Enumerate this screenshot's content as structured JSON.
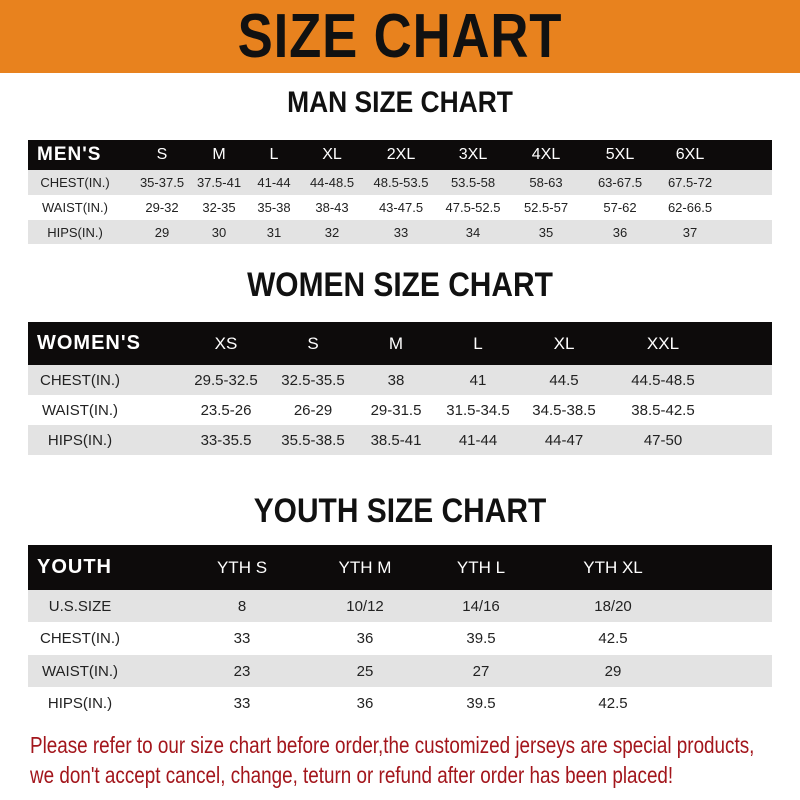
{
  "banner": {
    "title": "SIZE CHART",
    "color": "#E8821E"
  },
  "men": {
    "title": "MAN SIZE CHART",
    "header": [
      "MEN'S",
      "S",
      "M",
      "L",
      "XL",
      "2XL",
      "3XL",
      "4XL",
      "5XL",
      "6XL"
    ],
    "rows": [
      [
        "CHEST(IN.)",
        "35-37.5",
        "37.5-41",
        "41-44",
        "44-48.5",
        "48.5-53.5",
        "53.5-58",
        "58-63",
        "63-67.5",
        "67.5-72"
      ],
      [
        "WAIST(IN.)",
        "29-32",
        "32-35",
        "35-38",
        "38-43",
        "43-47.5",
        "47.5-52.5",
        "52.5-57",
        "57-62",
        "62-66.5"
      ],
      [
        "HIPS(IN.)",
        "29",
        "30",
        "31",
        "32",
        "33",
        "34",
        "35",
        "36",
        "37"
      ]
    ]
  },
  "women": {
    "title": "WOMEN SIZE CHART",
    "header": [
      "WOMEN'S",
      "XS",
      "S",
      "M",
      "L",
      "XL",
      "XXL"
    ],
    "rows": [
      [
        "CHEST(IN.)",
        "29.5-32.5",
        "32.5-35.5",
        "38",
        "41",
        "44.5",
        "44.5-48.5"
      ],
      [
        "WAIST(IN.)",
        "23.5-26",
        "26-29",
        "29-31.5",
        "31.5-34.5",
        "34.5-38.5",
        "38.5-42.5"
      ],
      [
        "HIPS(IN.)",
        "33-35.5",
        "35.5-38.5",
        "38.5-41",
        "41-44",
        "44-47",
        "47-50"
      ]
    ]
  },
  "youth": {
    "title": "YOUTH SIZE CHART",
    "header": [
      "YOUTH",
      "YTH S",
      "YTH M",
      "YTH L",
      "YTH XL"
    ],
    "rows": [
      [
        "U.S.SIZE",
        "8",
        "10/12",
        "14/16",
        "18/20"
      ],
      [
        "CHEST(IN.)",
        "33",
        "36",
        "39.5",
        "42.5"
      ],
      [
        "WAIST(IN.)",
        "23",
        "25",
        "27",
        "29"
      ],
      [
        "HIPS(IN.)",
        "33",
        "36",
        "39.5",
        "42.5"
      ]
    ]
  },
  "notice": {
    "line1": "Please refer to our size chart before order,the customized jerseys are special products,",
    "line2": "we don't accept cancel, change, teturn or refund after order has been placed!",
    "color": "#a3161c"
  }
}
